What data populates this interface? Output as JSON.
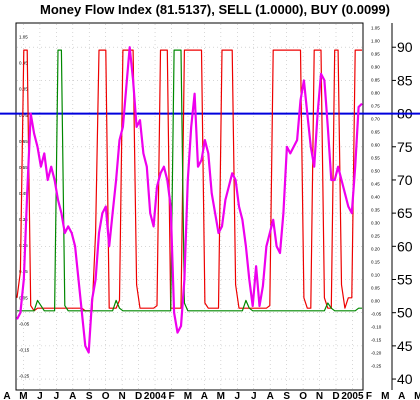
{
  "chart_data": {
    "type": "line",
    "title": "Money Flow Index (81.5137), SELL (1.0000), BUY (0.0099)",
    "x_tick_labels": [
      "A",
      "M",
      "J",
      "J",
      "A",
      "S",
      "O",
      "N",
      "D",
      "2004",
      "F",
      "M",
      "A",
      "M",
      "J",
      "J",
      "A",
      "S",
      "O",
      "N",
      "D",
      "2005",
      "F",
      "M",
      "A",
      "M"
    ],
    "right_axis": {
      "ticks": [
        40,
        45,
        50,
        55,
        60,
        65,
        70,
        75,
        80,
        85,
        90
      ],
      "ylim": [
        38.5,
        93.5
      ]
    },
    "left_axis": {
      "ticks": [
        "-0.25",
        "-0.15",
        "-0.05",
        "0.05",
        "0.15",
        "0.25",
        "0.35",
        "0.45",
        "0.55",
        "0.65",
        "0.75",
        "0.85",
        "0.95",
        "1.05"
      ],
      "ylim": [
        -0.3,
        1.1
      ],
      "side_tick_labels": [
        "1.05",
        "1.00",
        "0.95",
        "0.90",
        "0.85",
        "0.80",
        "0.75",
        "0.70",
        "0.65",
        "0.60",
        "0.55",
        "0.50",
        "0.45",
        "0.40",
        "0.35",
        "0.30",
        "0.25",
        "0.20",
        "0.15",
        "0.10",
        "0.05",
        "0.00",
        "-0.05",
        "-0.10",
        "-0.15",
        "-0.20",
        "-0.25"
      ]
    },
    "reference_line": {
      "value": 80,
      "color": "#0000dd"
    },
    "series": [
      {
        "axis": "right",
        "color": "#ee00ee",
        "values": [
          49,
          50,
          55,
          68,
          80,
          77,
          75,
          72,
          74,
          70,
          72,
          70,
          67,
          65,
          62,
          63,
          62,
          60,
          55,
          50,
          45,
          44,
          52,
          55,
          62,
          65,
          66,
          60,
          65,
          70,
          76,
          78,
          84,
          90,
          85,
          78,
          79,
          74,
          72,
          65,
          63,
          69,
          71,
          72,
          70,
          66,
          50,
          47,
          48,
          55,
          70,
          78,
          83,
          72,
          73,
          76,
          74,
          68,
          65,
          62,
          63,
          67,
          69,
          71,
          70,
          66,
          64,
          60,
          55,
          51,
          57,
          51,
          54,
          60,
          62,
          64,
          60,
          59,
          65,
          75,
          74,
          75,
          76,
          82,
          85,
          80,
          75,
          72,
          80,
          86,
          85,
          78,
          70,
          70,
          72,
          70,
          68,
          66,
          65,
          72,
          81,
          81.5
        ]
      },
      {
        "axis": "left",
        "color": "#ee0000",
        "values": [
          0.05,
          0.15,
          1.0,
          1.0,
          0.02,
          0.0,
          0.01,
          0.01,
          0.01,
          0.01,
          0.01,
          0.01,
          0.01,
          0.01,
          0.01,
          0.01,
          0.01,
          0.01,
          0.01,
          0.01,
          0.0,
          0.0,
          0.0,
          0.3,
          1.0,
          1.0,
          1.0,
          0.01,
          0.01,
          0.01,
          0.04,
          1.0,
          1.0,
          1.0,
          1.0,
          0.1,
          0.01,
          0.01,
          0.01,
          0.01,
          0.01,
          0.02,
          1.0,
          1.0,
          1.0,
          0.01,
          0.01,
          0.01,
          0.01,
          1.0,
          1.0,
          1.0,
          1.0,
          1.0,
          1.0,
          0.03,
          0.01,
          0.01,
          0.01,
          0.01,
          1.0,
          1.0,
          1.0,
          1.0,
          0.1,
          0.01,
          0.01,
          0.01,
          0.01,
          0.01,
          0.01,
          0.01,
          0.01,
          0.01,
          0.02,
          1.0,
          1.0,
          1.0,
          1.0,
          1.0,
          1.0,
          1.0,
          1.0,
          1.0,
          0.05,
          0.01,
          0.01,
          1.0,
          1.0,
          1.0,
          0.05,
          0.01,
          0.01,
          1.0,
          1.0,
          0.1,
          0.01,
          0.05,
          0.05,
          1.0,
          1.0,
          1.0
        ]
      },
      {
        "axis": "left",
        "color": "#008800",
        "values": [
          0.0,
          0.0,
          0.0,
          0.0,
          0.0,
          0.0,
          0.04,
          0.02,
          0.0,
          0.0,
          0.0,
          0.0,
          1.0,
          1.0,
          0.02,
          0.0,
          0.0,
          0.0,
          0.0,
          0.0,
          0.0,
          0.0,
          0.0,
          0.0,
          0.0,
          0.0,
          0.0,
          0.0,
          0.0,
          0.04,
          0.01,
          0.0,
          0.0,
          0.0,
          0.0,
          0.0,
          0.0,
          0.0,
          0.0,
          0.0,
          0.0,
          0.0,
          0.0,
          0.0,
          0.0,
          0.0,
          1.0,
          1.0,
          1.0,
          0.03,
          0.0,
          0.0,
          0.0,
          0.0,
          0.0,
          0.0,
          0.0,
          0.0,
          0.0,
          0.0,
          0.0,
          0.0,
          0.0,
          0.0,
          0.0,
          0.0,
          0.0,
          0.04,
          0.01,
          0.0,
          0.0,
          0.0,
          0.0,
          0.0,
          0.0,
          0.0,
          0.0,
          0.0,
          0.0,
          0.0,
          0.0,
          0.0,
          0.0,
          0.0,
          0.0,
          0.0,
          0.0,
          0.0,
          0.0,
          0.0,
          0.0,
          0.03,
          0.01,
          0.0,
          0.0,
          0.0,
          0.0,
          0.0,
          0.0,
          0.0,
          0.01,
          0.01
        ]
      }
    ]
  }
}
